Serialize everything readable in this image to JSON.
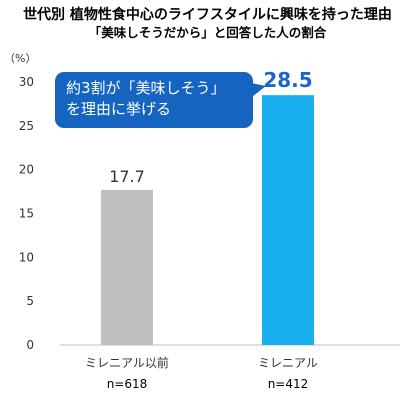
{
  "title": "世代別 植物性食中心のライフスタイルに興味を持った理由",
  "subtitle": "「美味しそうだから」と回答した人の割合",
  "unit_label": "（%）",
  "callout": {
    "line1": "約3割が「美味しそう」",
    "line2": "を理由に挙げる",
    "color": "#1565c0"
  },
  "chart_data": {
    "type": "bar",
    "title": "世代別 植物性食中心のライフスタイルに興味を持った理由",
    "subtitle": "「美味しそうだから」と回答した人の割合",
    "ylabel": "（%）",
    "xlabel": "",
    "categories": [
      "ミレニアル以前",
      "ミレニアル"
    ],
    "sample_sizes": [
      "n=618",
      "n=412"
    ],
    "values": [
      17.7,
      28.5
    ],
    "value_labels": [
      "17.7",
      "28.5"
    ],
    "colors": [
      "#bfbfbf",
      "#1ab0f0"
    ],
    "label_colors": [
      "#333333",
      "#1a66c9"
    ],
    "ylim": [
      0,
      30
    ],
    "yticks": [
      0,
      5,
      10,
      15,
      20,
      25,
      30
    ],
    "grid": false
  }
}
